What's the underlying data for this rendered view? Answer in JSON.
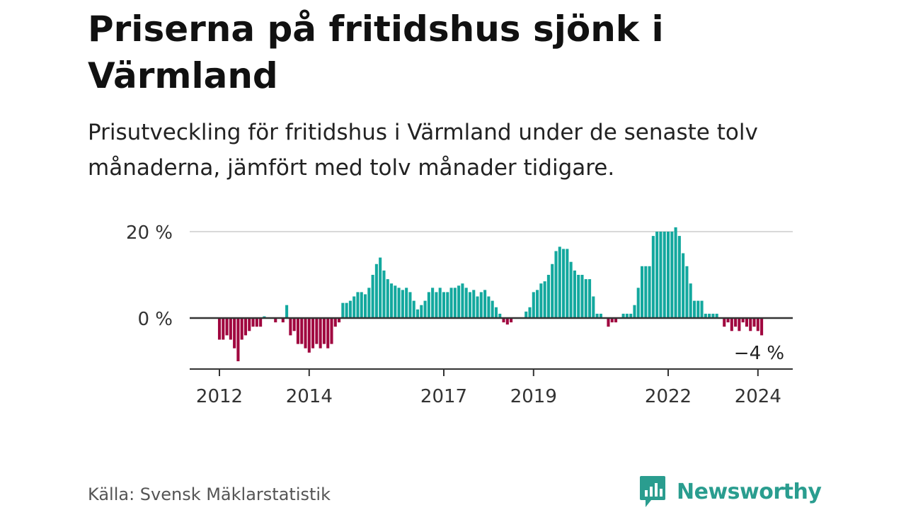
{
  "header": {
    "title": "Priserna på fritidshus sjönk i Värmland",
    "subtitle": "Prisutveckling för fritidshus i Värmland under de senaste tolv månaderna, jämfört med tolv månader tidigare."
  },
  "footer": {
    "source": "Källa: Svensk Mäklarstatistik",
    "brand": "Newsworthy"
  },
  "colors": {
    "positive": "#13a89e",
    "negative": "#a0063f",
    "baseline": "#333333",
    "grid": "#d9d9d9",
    "brand": "#2a9d8f"
  },
  "chart_data": {
    "type": "bar",
    "title": "Priserna på fritidshus sjönk i Värmland",
    "xlabel": "",
    "ylabel": "",
    "ylim": [
      -12,
      21
    ],
    "y_ticks": [
      {
        "value": 0,
        "label": "0 %"
      },
      {
        "value": 20,
        "label": "20 %"
      }
    ],
    "x_ticks": [
      {
        "date": 2012.0,
        "label": "2012"
      },
      {
        "date": 2014.0,
        "label": "2014"
      },
      {
        "date": 2017.0,
        "label": "2017"
      },
      {
        "date": 2019.0,
        "label": "2019"
      },
      {
        "date": 2022.0,
        "label": "2022"
      },
      {
        "date": 2024.0,
        "label": "2024"
      }
    ],
    "annotation": {
      "text": "−4 %",
      "value": -4
    },
    "start": 2012.0,
    "step_months": 1,
    "series": [
      {
        "name": "Prisutveckling (%)",
        "values": [
          -5,
          -5,
          -4,
          -5,
          -7,
          -10,
          -5,
          -4,
          -3,
          -2,
          -2,
          -2,
          0.4,
          0,
          0,
          -1,
          0,
          -1,
          3,
          -4,
          -3,
          -6,
          -6,
          -7,
          -8,
          -7,
          -6,
          -7,
          -6,
          -7,
          -6,
          -2,
          -1,
          3.5,
          3.5,
          4,
          5,
          6,
          6,
          5.5,
          7,
          10,
          12.5,
          14,
          11,
          9,
          8,
          7.5,
          7,
          6.5,
          7,
          6,
          4,
          2,
          3,
          4,
          6,
          7,
          6,
          7,
          6,
          6,
          7,
          7,
          7.5,
          8,
          7,
          6,
          6.5,
          5,
          6,
          6.5,
          5,
          4,
          2.5,
          1,
          -1,
          -1.5,
          -1,
          0,
          0,
          0,
          1.5,
          2.5,
          6,
          6.5,
          8,
          8.5,
          10,
          12.5,
          15.5,
          16.5,
          16,
          16,
          13,
          11,
          10,
          10,
          9,
          9,
          5,
          1,
          1,
          0,
          -2,
          -1,
          -1,
          0,
          1,
          1,
          1,
          3,
          7,
          12,
          12,
          12,
          19,
          20,
          20,
          20,
          20,
          20,
          21,
          19,
          15,
          12,
          8,
          4,
          4,
          4,
          1,
          1,
          1,
          1,
          0,
          -2,
          -1,
          -3,
          -2,
          -3,
          -1,
          -2,
          -3,
          -2,
          -3,
          -4
        ]
      }
    ]
  }
}
